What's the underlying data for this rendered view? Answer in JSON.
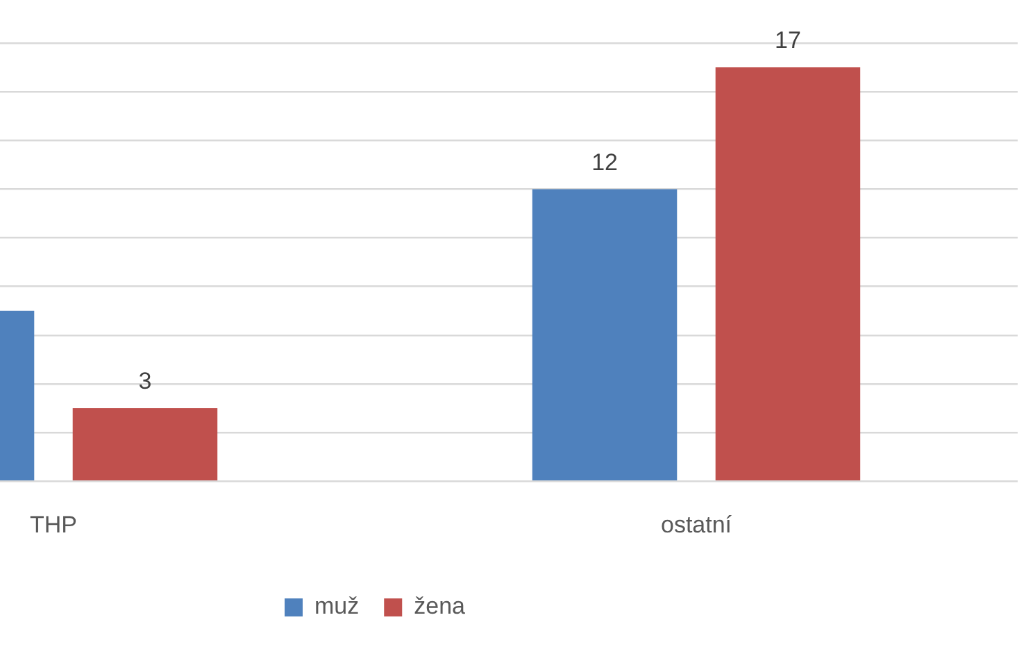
{
  "chart_data": {
    "type": "bar",
    "categories": [
      "THP",
      "ostatní"
    ],
    "series": [
      {
        "name": "muž",
        "color": "#4f81bd",
        "values": [
          7,
          12
        ],
        "value_labels": [
          null,
          "12"
        ]
      },
      {
        "name": "žena",
        "color": "#c0504d",
        "values": [
          3,
          17
        ],
        "value_labels": [
          "3",
          "17"
        ]
      }
    ],
    "ylim": [
      0,
      18
    ],
    "yticks": [
      {
        "value": 0,
        "label": null
      },
      {
        "value": 2,
        "label": null
      },
      {
        "value": 4,
        "label": null
      },
      {
        "value": 6,
        "label": null
      },
      {
        "value": 8,
        "label": null
      },
      {
        "value": 10,
        "label": null
      },
      {
        "value": 12,
        "label": null
      },
      {
        "value": 14,
        "label": null
      },
      {
        "value": 16,
        "label": null
      },
      {
        "value": 18,
        "label": null
      }
    ],
    "grid": "y",
    "legend": "bottom",
    "tick_labels": "x"
  }
}
